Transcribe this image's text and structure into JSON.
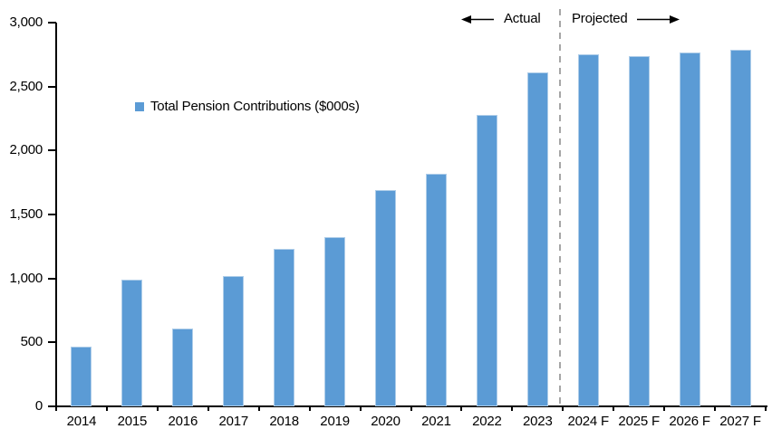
{
  "legend": {
    "label": "Total Pension Contributions ($000s)"
  },
  "annotations": {
    "actual_label": "Actual",
    "projected_label": "Projected"
  },
  "chart_data": {
    "type": "bar",
    "title": "",
    "xlabel": "",
    "ylabel": "",
    "categories": [
      "2014",
      "2015",
      "2016",
      "2017",
      "2018",
      "2019",
      "2020",
      "2021",
      "2022",
      "2023",
      "2024 F",
      "2025 F",
      "2026 F",
      "2027 F"
    ],
    "values": [
      470,
      990,
      610,
      1020,
      1230,
      1320,
      1690,
      1815,
      2280,
      2610,
      2750,
      2740,
      2770,
      2790
    ],
    "series_name": "Total Pension Contributions ($000s)",
    "ylim": [
      0,
      3000
    ],
    "ytick_interval": 500,
    "ytick_labels": [
      "0",
      "500",
      "1,000",
      "1,500",
      "2,000",
      "2,500",
      "3,000"
    ],
    "grid": false,
    "legend_position": "inside-upper-left",
    "sections": [
      {
        "name": "Actual",
        "from": "2014",
        "to": "2023"
      },
      {
        "name": "Projected",
        "from": "2024 F",
        "to": "2027 F"
      }
    ],
    "divider_after_category": "2023"
  },
  "colors": {
    "bar_fill": "#5b9bd5",
    "bar_edge": "#aecde9",
    "divider": "#a6a6a6",
    "axis": "#000000",
    "text": "#000000"
  }
}
